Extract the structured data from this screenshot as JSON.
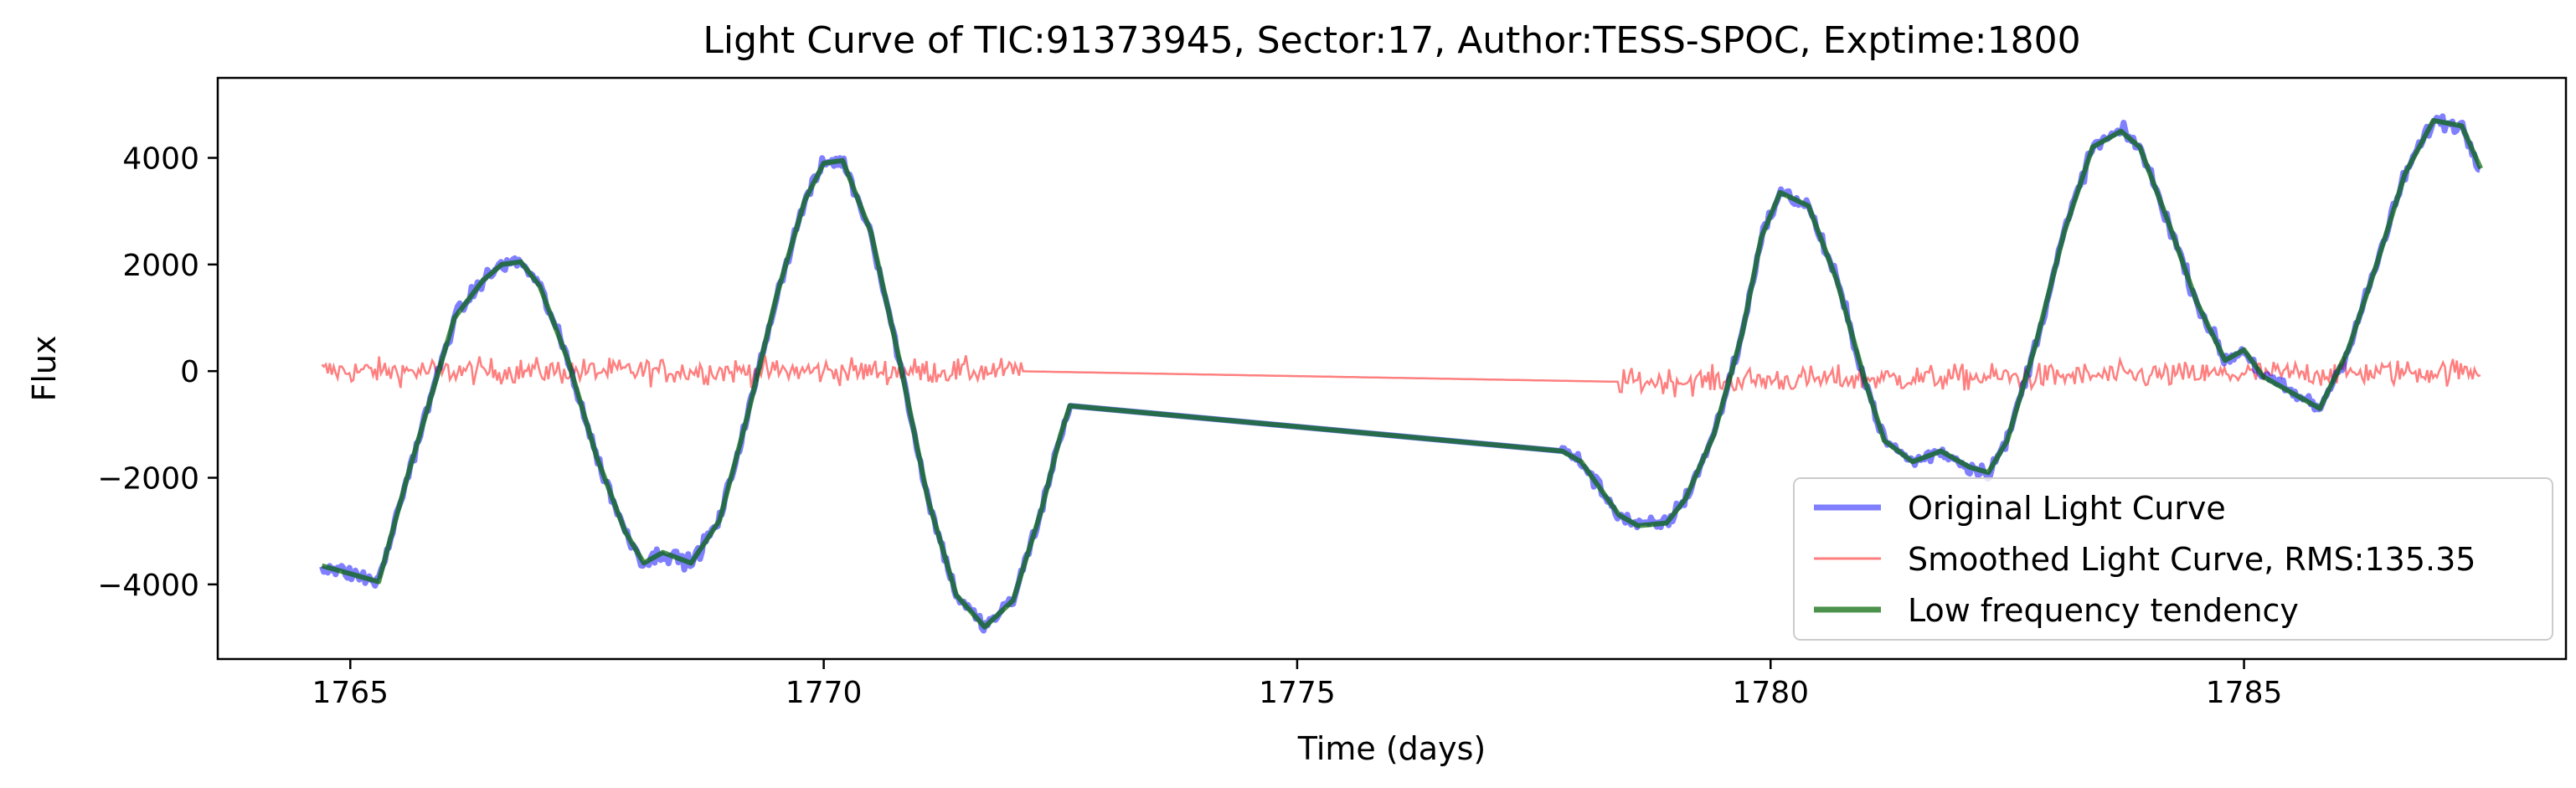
{
  "chart_data": {
    "type": "line",
    "title": "Light Curve of TIC:91373945, Sector:17, Author:TESS-SPOC, Exptime:1800",
    "xlabel": "Time (days)",
    "ylabel": "Flux",
    "xlim": [
      1763.6,
      1788.4
    ],
    "ylim": [
      -5400,
      5500
    ],
    "xticks": [
      1765,
      1770,
      1775,
      1780,
      1785
    ],
    "yticks": [
      -4000,
      -2000,
      0,
      2000,
      4000
    ],
    "xtick_labels": [
      "1765",
      "1770",
      "1775",
      "1780",
      "1785"
    ],
    "ytick_labels": [
      "−4000",
      "−2000",
      "0",
      "2000",
      "4000"
    ],
    "grid": false,
    "legend_position": "lower-right",
    "gap": [
      1772.1,
      1778.4
    ],
    "series": [
      {
        "name": "Original Light Curve",
        "color": "#0000ff",
        "alpha": 0.5,
        "style": "noisy-trend",
        "x": [
          1764.7,
          1765.0,
          1765.3,
          1765.6,
          1765.8,
          1766.1,
          1766.4,
          1766.6,
          1766.8,
          1767.0,
          1767.3,
          1767.6,
          1767.9,
          1768.1,
          1768.3,
          1768.6,
          1768.9,
          1769.2,
          1769.5,
          1769.8,
          1770.0,
          1770.2,
          1770.5,
          1770.8,
          1771.1,
          1771.4,
          1771.7,
          1772.0,
          1772.3,
          1772.5,
          1772.6,
          1777.8,
          1778.0,
          1778.2,
          1778.4,
          1778.6,
          1778.9,
          1779.1,
          1779.4,
          1779.7,
          1779.9,
          1780.1,
          1780.4,
          1780.7,
          1781.0,
          1781.2,
          1781.5,
          1781.8,
          1782.1,
          1782.3,
          1782.5,
          1782.8,
          1783.1,
          1783.4,
          1783.7,
          1783.9,
          1784.2,
          1784.5,
          1784.8,
          1785.0,
          1785.2,
          1785.5,
          1785.8,
          1786.1,
          1786.4,
          1786.7,
          1787.0,
          1787.3,
          1787.5
        ],
        "y": [
          -3650,
          -3800,
          -3950,
          -2000,
          -800,
          1000,
          1700,
          2000,
          2050,
          1600,
          200,
          -1600,
          -3000,
          -3600,
          -3400,
          -3600,
          -2800,
          -800,
          1400,
          3200,
          3900,
          3950,
          2600,
          200,
          -2400,
          -4200,
          -4800,
          -4300,
          -2600,
          -1200,
          -650,
          -1500,
          -1700,
          -2200,
          -2700,
          -2900,
          -2850,
          -2400,
          -1200,
          700,
          2500,
          3350,
          3100,
          1700,
          -200,
          -1300,
          -1700,
          -1500,
          -1800,
          -1900,
          -1300,
          500,
          2600,
          4200,
          4500,
          4200,
          2800,
          1300,
          200,
          400,
          -100,
          -400,
          -700,
          400,
          2000,
          3700,
          4700,
          4600,
          3800
        ]
      },
      {
        "name": "Smoothed Light Curve, RMS:135.35",
        "color": "#ff0000",
        "alpha": 0.5,
        "style": "noise",
        "rms": 135.35,
        "x": [
          1764.7,
          1772.0,
          1778.4,
          1787.5
        ],
        "y": [
          0,
          0,
          -200,
          0
        ]
      },
      {
        "name": "Low frequency tendency",
        "color": "#006400",
        "alpha": 0.7,
        "style": "trend",
        "x": [
          1764.7,
          1765.0,
          1765.3,
          1765.6,
          1765.8,
          1766.1,
          1766.4,
          1766.6,
          1766.8,
          1767.0,
          1767.3,
          1767.6,
          1767.9,
          1768.1,
          1768.3,
          1768.6,
          1768.9,
          1769.2,
          1769.5,
          1769.8,
          1770.0,
          1770.2,
          1770.5,
          1770.8,
          1771.1,
          1771.4,
          1771.7,
          1772.0,
          1772.3,
          1772.5,
          1772.6,
          1777.8,
          1778.0,
          1778.2,
          1778.4,
          1778.6,
          1778.9,
          1779.1,
          1779.4,
          1779.7,
          1779.9,
          1780.1,
          1780.4,
          1780.7,
          1781.0,
          1781.2,
          1781.5,
          1781.8,
          1782.1,
          1782.3,
          1782.5,
          1782.8,
          1783.1,
          1783.4,
          1783.7,
          1783.9,
          1784.2,
          1784.5,
          1784.8,
          1785.0,
          1785.2,
          1785.5,
          1785.8,
          1786.1,
          1786.4,
          1786.7,
          1787.0,
          1787.3,
          1787.5
        ],
        "y": [
          -3650,
          -3800,
          -3950,
          -2000,
          -800,
          1000,
          1700,
          2000,
          2050,
          1600,
          200,
          -1600,
          -3000,
          -3600,
          -3400,
          -3600,
          -2800,
          -800,
          1400,
          3200,
          3900,
          3950,
          2600,
          200,
          -2400,
          -4200,
          -4800,
          -4300,
          -2600,
          -1200,
          -650,
          -1500,
          -1700,
          -2200,
          -2700,
          -2900,
          -2850,
          -2400,
          -1200,
          700,
          2500,
          3350,
          3100,
          1700,
          -200,
          -1300,
          -1700,
          -1500,
          -1800,
          -1900,
          -1300,
          500,
          2600,
          4200,
          4500,
          4200,
          2800,
          1300,
          200,
          400,
          -100,
          -400,
          -700,
          400,
          2000,
          3700,
          4700,
          4600,
          3800
        ]
      }
    ]
  }
}
